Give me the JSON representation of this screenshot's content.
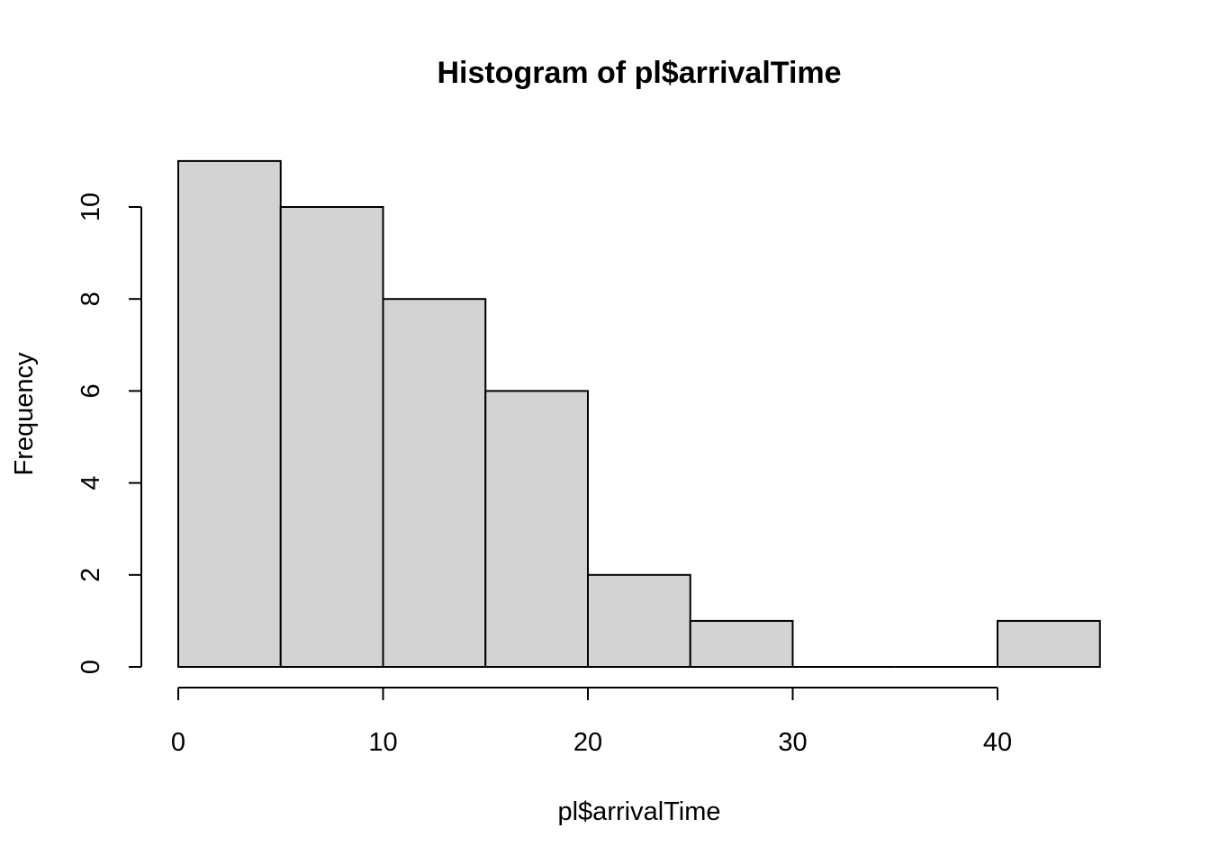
{
  "chart_data": {
    "type": "bar",
    "title": "Histogram of pl$arrivalTime",
    "xlabel": "pl$arrivalTime",
    "ylabel": "Frequency",
    "bins": [
      {
        "start": 0,
        "end": 5,
        "count": 11
      },
      {
        "start": 5,
        "end": 10,
        "count": 10
      },
      {
        "start": 10,
        "end": 15,
        "count": 8
      },
      {
        "start": 15,
        "end": 20,
        "count": 6
      },
      {
        "start": 20,
        "end": 25,
        "count": 2
      },
      {
        "start": 25,
        "end": 30,
        "count": 1
      },
      {
        "start": 30,
        "end": 35,
        "count": 0
      },
      {
        "start": 35,
        "end": 40,
        "count": 0
      },
      {
        "start": 40,
        "end": 45,
        "count": 1
      }
    ],
    "xticks": [
      0,
      10,
      20,
      30,
      40
    ],
    "yticks": [
      0,
      2,
      4,
      6,
      8,
      10
    ],
    "xlim": [
      0,
      45
    ],
    "ylim": [
      0,
      11
    ],
    "grid": false,
    "bar_fill": "#d3d3d3",
    "bar_stroke": "#000000"
  }
}
